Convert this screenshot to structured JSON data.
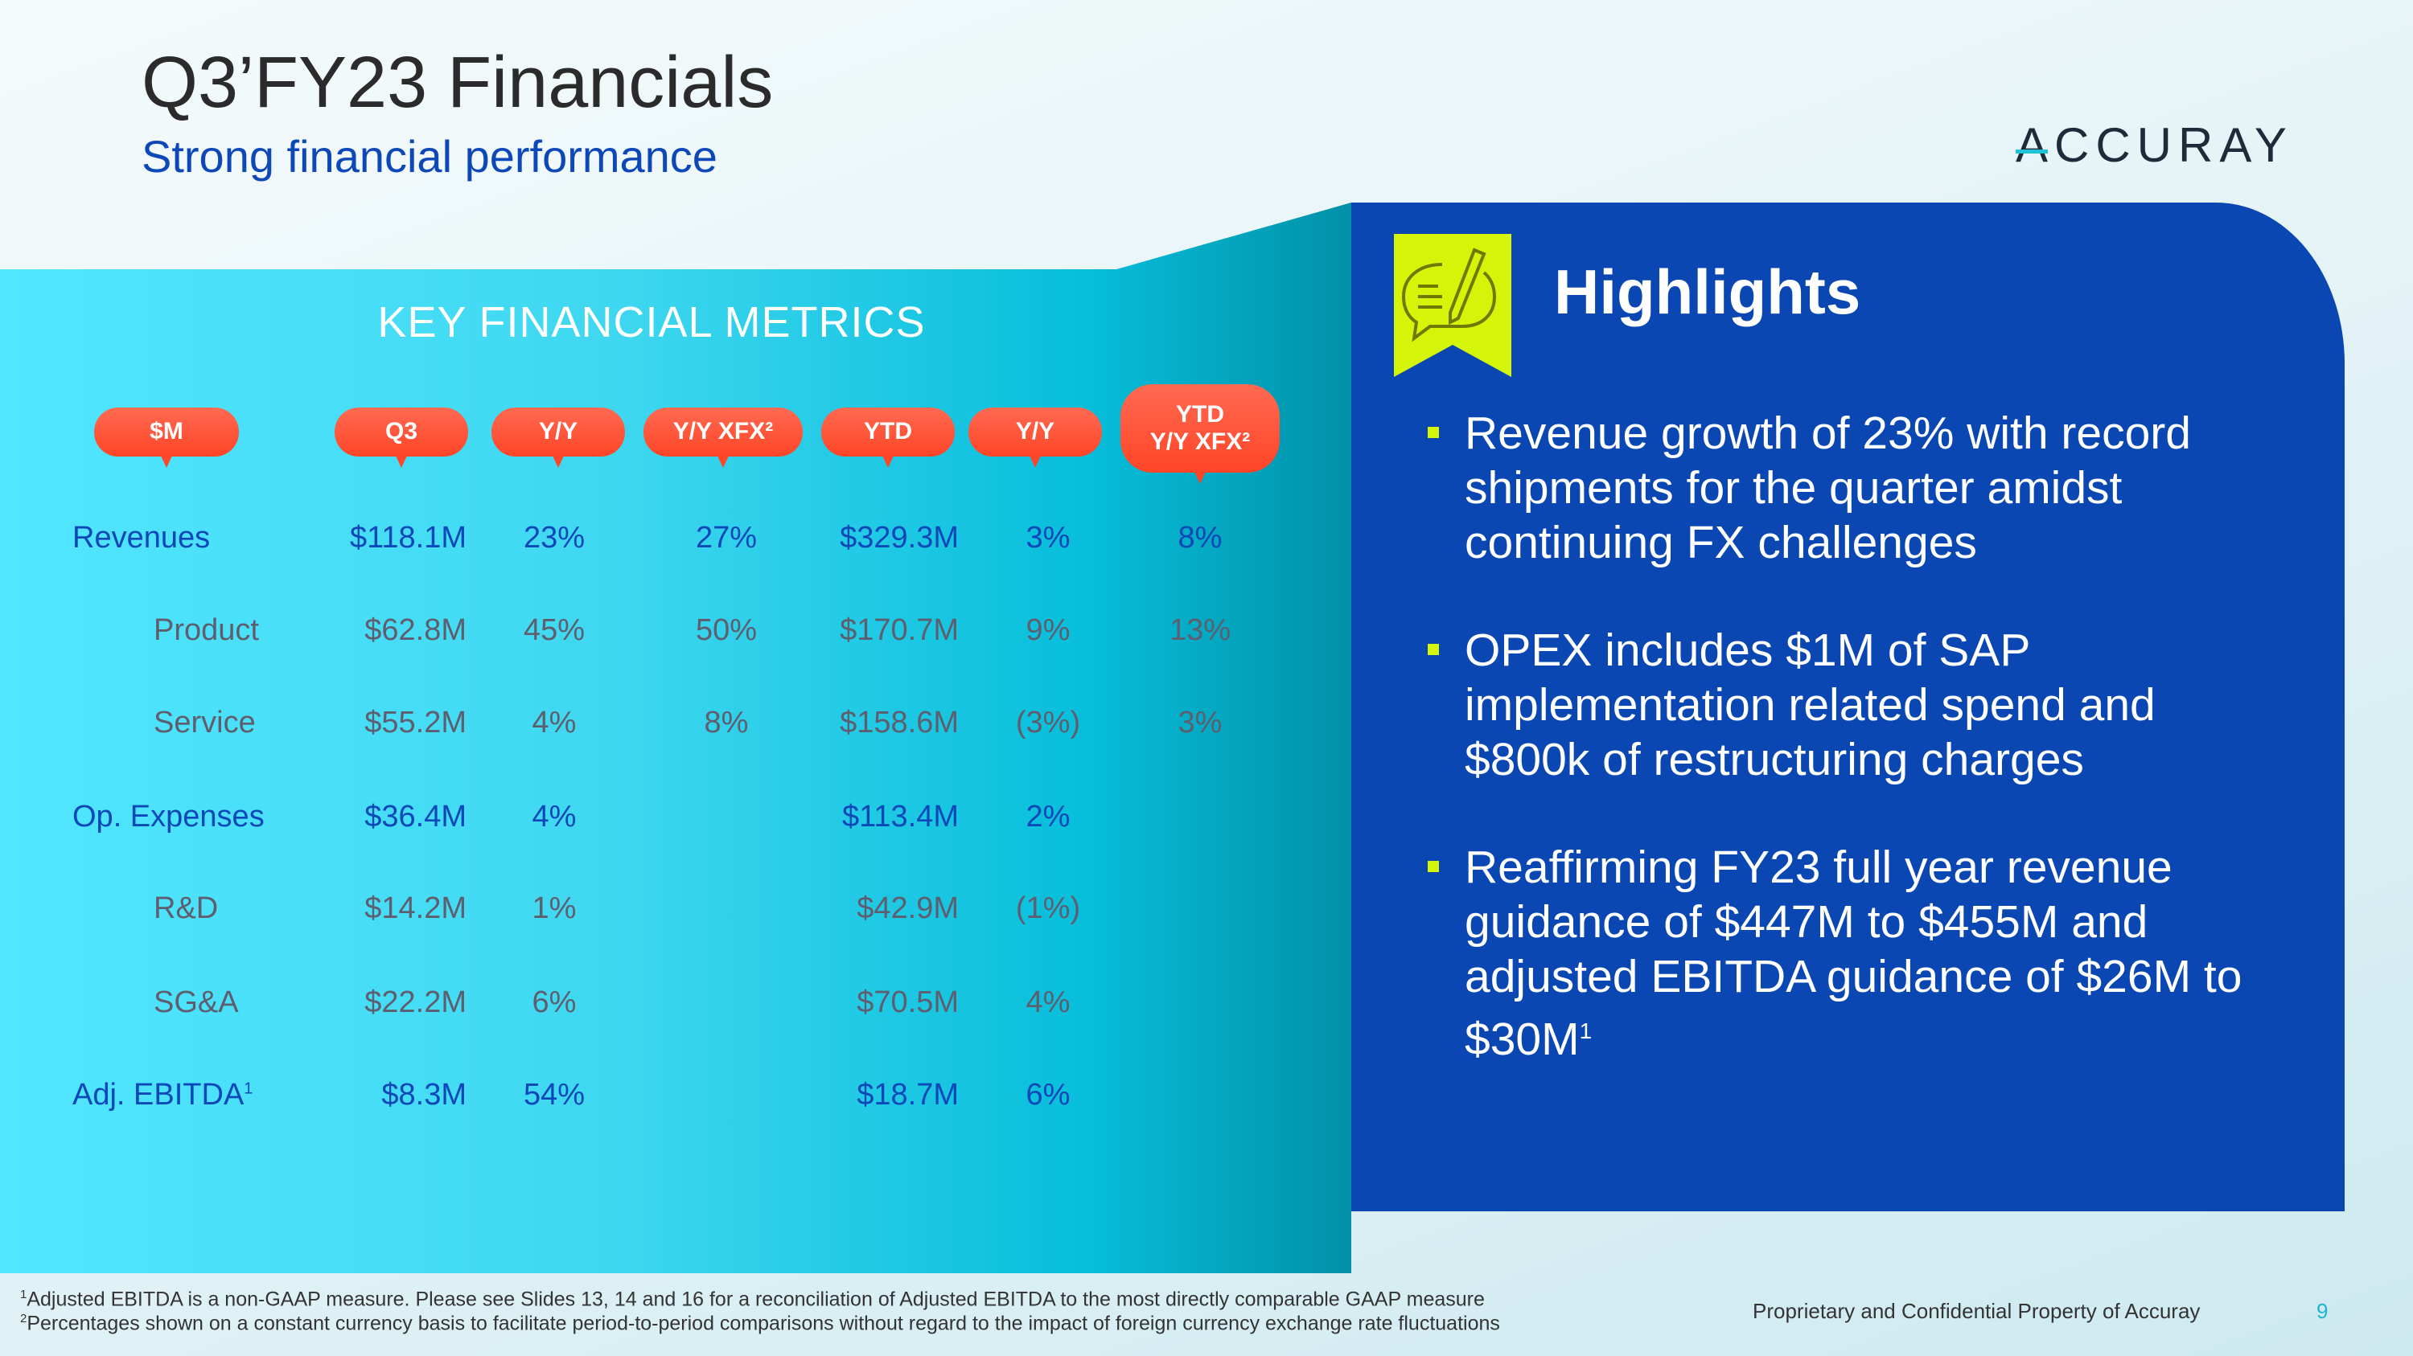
{
  "header": {
    "title": "Q3’FY23 Financials",
    "subtitle": "Strong financial performance",
    "logo": "ACCURAY"
  },
  "metrics": {
    "heading": "KEY FINANCIAL METRICS",
    "columns": [
      "$M",
      "Q3",
      "Y/Y",
      "Y/Y XFX²",
      "YTD",
      "Y/Y",
      "YTD",
      "Y/Y XFX²"
    ],
    "rows": [
      {
        "label": "Revenues",
        "q3": "$118.1M",
        "yy": "23%",
        "xfx": "27%",
        "ytd": "$329.3M",
        "ytd_yy": "3%",
        "ytd_xfx": "8%"
      },
      {
        "label": "Product",
        "q3": "$62.8M",
        "yy": "45%",
        "xfx": "50%",
        "ytd": "$170.7M",
        "ytd_yy": "9%",
        "ytd_xfx": "13%"
      },
      {
        "label": "Service",
        "q3": "$55.2M",
        "yy": "4%",
        "xfx": "8%",
        "ytd": "$158.6M",
        "ytd_yy": "(3%)",
        "ytd_xfx": "3%"
      },
      {
        "label": "Op. Expenses",
        "q3": "$36.4M",
        "yy": "4%",
        "ytd": "$113.4M",
        "ytd_yy": "2%"
      },
      {
        "label": "R&D",
        "q3": "$14.2M",
        "yy": "1%",
        "ytd": "$42.9M",
        "ytd_yy": "(1%)"
      },
      {
        "label": "SG&A",
        "q3": "$22.2M",
        "yy": "6%",
        "ytd": "$70.5M",
        "ytd_yy": "4%"
      },
      {
        "label": "Adj. EBITDA",
        "label_sup": "1",
        "q3": "$8.3M",
        "yy": "54%",
        "ytd": "$18.7M",
        "ytd_yy": "6%"
      }
    ]
  },
  "highlights": {
    "title": "Highlights",
    "icon": "speech-bubble-pencil-icon",
    "items": [
      "Revenue growth of 23% with record shipments for the quarter amidst continuing FX challenges",
      "OPEX includes $1M of SAP implementation related spend and $800k of restructuring charges",
      "Reaffirming FY23 full year revenue guidance of $447M to $455M and adjusted EBITDA guidance of $26M to $30M"
    ],
    "item3_sup": "1"
  },
  "footer": {
    "note1_num": "1",
    "note1": "Adjusted EBITDA is a non-GAAP measure.  Please see Slides 13, 14 and 16 for a reconciliation of Adjusted EBITDA to the most directly comparable GAAP measure",
    "note2_num": "2",
    "note2": "Percentages shown on a constant currency basis to facilitate period-to-period comparisons without regard to the impact of foreign currency exchange rate fluctuations",
    "proprietary": "Proprietary and Confidential Property of Accuray",
    "page": "9"
  },
  "colors": {
    "accent_blue": "#0a47b3",
    "cyan": "#3fd7f0",
    "pill_red": "#ff4527",
    "highlight_lime": "#d4f50a"
  }
}
